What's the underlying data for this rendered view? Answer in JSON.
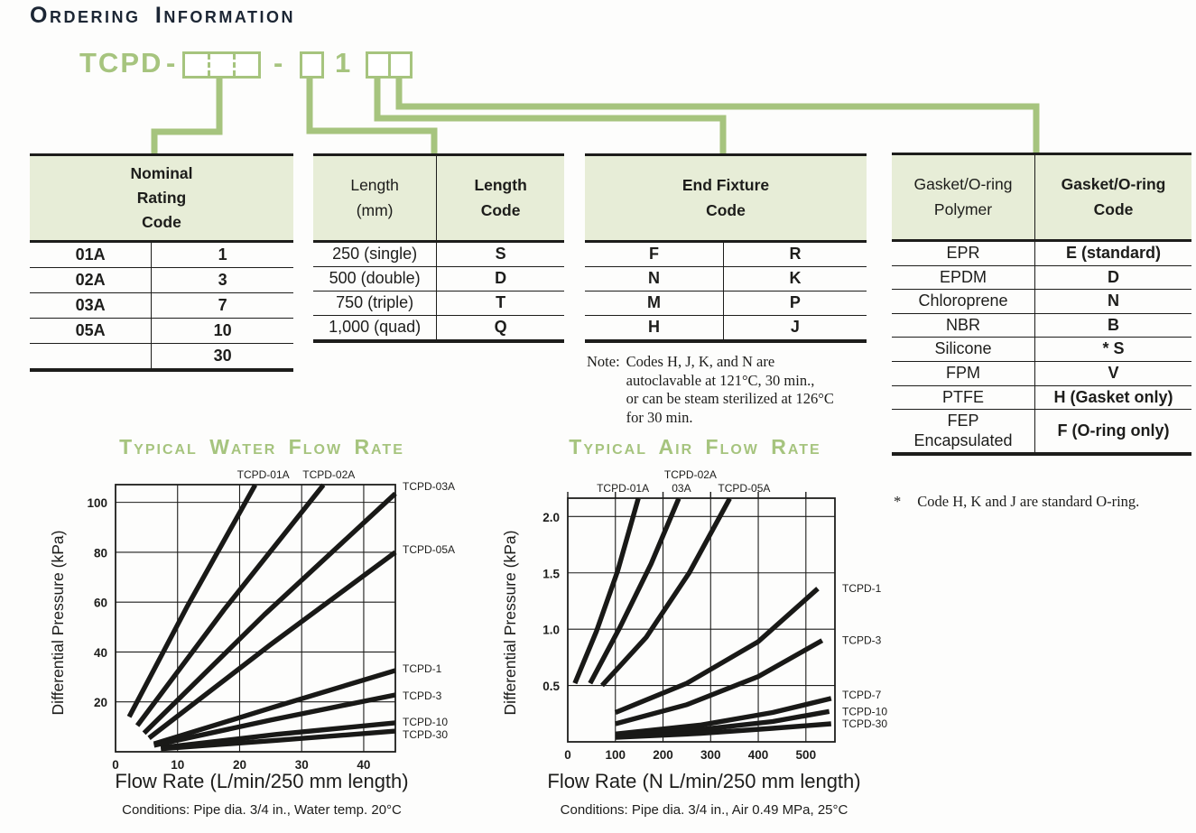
{
  "title": "Ordering Information",
  "colors": {
    "accent_green": "#a6c47e",
    "header_bg": "#e7edd7",
    "title_navy": "#1c2634",
    "ink": "#1d1d1b"
  },
  "part_number": {
    "prefix": "TCPD",
    "dash": "-",
    "digit": "1"
  },
  "tables": {
    "nominal": {
      "header": "Nominal\nRating\nCode",
      "rows": [
        [
          "01A",
          "1"
        ],
        [
          "02A",
          "3"
        ],
        [
          "03A",
          "7"
        ],
        [
          "05A",
          "10"
        ],
        [
          "",
          "30"
        ]
      ]
    },
    "length": {
      "headers": [
        "Length\n(mm)",
        "Length\nCode"
      ],
      "rows": [
        [
          "250 (single)",
          "S"
        ],
        [
          "500 (double)",
          "D"
        ],
        [
          "750 (triple)",
          "T"
        ],
        [
          "1,000 (quad)",
          "Q"
        ]
      ]
    },
    "end_fixture": {
      "header": "End Fixture\nCode",
      "rows": [
        [
          "F",
          "R"
        ],
        [
          "N",
          "K"
        ],
        [
          "M",
          "P"
        ],
        [
          "H",
          "J"
        ]
      ],
      "note_label": "Note:",
      "note_body": "Codes H, J, K, and N are\nautoclavable at 121°C, 30 min.,\nor can be steam sterilized at 126°C\nfor 30 min."
    },
    "gasket": {
      "headers": [
        "Gasket/O-ring\nPolymer",
        "Gasket/O-ring\nCode"
      ],
      "rows": [
        [
          "EPR",
          "E (standard)"
        ],
        [
          "EPDM",
          "D"
        ],
        [
          "Chloroprene",
          "N"
        ],
        [
          "NBR",
          "B"
        ],
        [
          "Silicone",
          "*  S"
        ],
        [
          "FPM",
          "V"
        ],
        [
          "PTFE",
          "H (Gasket only)"
        ],
        [
          "FEP\nEncapsulated",
          "F (O-ring only)"
        ]
      ],
      "footnote_mark": "*",
      "footnote_text": "Code H, K and J are standard O-ring."
    }
  },
  "chart_data": [
    {
      "type": "line",
      "title": "Typical Water Flow Rate",
      "xlabel": "Flow Rate (L/min/250 mm length)",
      "ylabel": "Differential Pressure (kPa)",
      "conditions": "Conditions: Pipe dia. 3/4 in., Water temp. 20°C",
      "xlim": [
        0,
        45.1
      ],
      "ylim": [
        0,
        107.1
      ],
      "grid": true,
      "top_ticks": false,
      "xticks": [
        {
          "v": 0,
          "label": "0"
        },
        {
          "v": 10,
          "label": "10"
        },
        {
          "v": 20,
          "label": "20"
        },
        {
          "v": 30,
          "label": "30"
        },
        {
          "v": 40,
          "label": "40"
        }
      ],
      "yticks": [
        {
          "v": 20,
          "label": "20"
        },
        {
          "v": 40,
          "label": "40"
        },
        {
          "v": 60,
          "label": "60"
        },
        {
          "v": 80,
          "label": "80"
        },
        {
          "v": 100,
          "label": "100"
        }
      ],
      "series": [
        {
          "label": "TCPD-01A",
          "label_pos": "top",
          "label_dx": 9,
          "points": [
            [
              2.2,
              14
            ],
            [
              11.5,
              58
            ],
            [
              22.5,
              107
            ]
          ]
        },
        {
          "label": "TCPD-02A",
          "label_pos": "top",
          "label_dx": 6,
          "points": [
            [
              3.5,
              10.5
            ],
            [
              17.5,
              57
            ],
            [
              33.5,
              107
            ]
          ]
        },
        {
          "label": "TCPD-03A",
          "label_pos": "right",
          "label_dy": -8,
          "points": [
            [
              4.6,
              7.5
            ],
            [
              24,
              55
            ],
            [
              45.1,
              103.5
            ]
          ]
        },
        {
          "label": "TCPD-05A",
          "label_pos": "right",
          "label_dy": -3,
          "points": [
            [
              5.4,
              5.5
            ],
            [
              25,
              43
            ],
            [
              45.1,
              80
            ]
          ]
        },
        {
          "label": "TCPD-1",
          "label_pos": "right",
          "label_dy": -2,
          "points": [
            [
              6.2,
              3.2
            ],
            [
              25,
              17.5
            ],
            [
              45.1,
              32.6
            ]
          ]
        },
        {
          "label": "TCPD-3",
          "label_pos": "right",
          "label_dy": 1,
          "points": [
            [
              6.2,
              2.6
            ],
            [
              25,
              12.7
            ],
            [
              45.1,
              22.8
            ]
          ]
        },
        {
          "label": "TCPD-10",
          "label_pos": "right",
          "label_dy": -1,
          "points": [
            [
              7.3,
              1.6
            ],
            [
              26,
              7
            ],
            [
              45.1,
              11.6
            ]
          ]
        },
        {
          "label": "TCPD-30",
          "label_pos": "right",
          "label_dy": 4,
          "points": [
            [
              7.3,
              1.2
            ],
            [
              26,
              4.6
            ],
            [
              45.1,
              8.3
            ]
          ]
        }
      ]
    },
    {
      "type": "line",
      "title": "Typical Air Flow Rate",
      "xlabel": "Flow Rate (N L/min/250 mm length)",
      "ylabel": "Differential Pressure (kPa)",
      "conditions": "Conditions: Pipe dia. 3/4 in., Air 0.49 MPa, 25°C",
      "xlim": [
        0,
        561
      ],
      "ylim": [
        0,
        2.163
      ],
      "grid": true,
      "top_ticks": true,
      "xticks": [
        {
          "v": 0,
          "label": "0"
        },
        {
          "v": 100,
          "label": "100"
        },
        {
          "v": 200,
          "label": "200"
        },
        {
          "v": 300,
          "label": "300"
        },
        {
          "v": 400,
          "label": "400"
        },
        {
          "v": 500,
          "label": "500"
        }
      ],
      "yticks": [
        {
          "v": 0.5,
          "label": "0.5"
        },
        {
          "v": 1.0,
          "label": "1.0"
        },
        {
          "v": 1.5,
          "label": "1.5"
        },
        {
          "v": 2.0,
          "label": "2.0"
        }
      ],
      "series": [
        {
          "label": "TCPD-01A",
          "label_pos": "top",
          "label_dx": -17,
          "points": [
            [
              15,
              0.52
            ],
            [
              60,
              0.98
            ],
            [
              105,
              1.52
            ],
            [
              148,
              2.16
            ]
          ]
        },
        {
          "label": "TCPD-02A\n03A",
          "label_pos": "top",
          "label_dx": 13,
          "points": [
            [
              47,
              0.52
            ],
            [
              110,
              1.02
            ],
            [
              175,
              1.58
            ],
            [
              233,
              2.16
            ]
          ]
        },
        {
          "label": "TCPD-05A",
          "label_pos": "top",
          "label_dx": 16,
          "points": [
            [
              72,
              0.5
            ],
            [
              165,
              0.93
            ],
            [
              255,
              1.5
            ],
            [
              340,
              2.16
            ]
          ]
        },
        {
          "label": "TCPD-1",
          "label_pos": "right",
          "points": [
            [
              100,
              0.26
            ],
            [
              250,
              0.52
            ],
            [
              400,
              0.89
            ],
            [
              525,
              1.36
            ]
          ]
        },
        {
          "label": "TCPD-3",
          "label_pos": "right",
          "points": [
            [
              100,
              0.16
            ],
            [
              250,
              0.33
            ],
            [
              400,
              0.58
            ],
            [
              534,
              0.9
            ]
          ]
        },
        {
          "label": "TCPD-7",
          "label_pos": "right",
          "label_dy": -4,
          "points": [
            [
              100,
              0.07
            ],
            [
              280,
              0.15
            ],
            [
              430,
              0.26
            ],
            [
              553,
              0.385
            ]
          ]
        },
        {
          "label": "TCPD-10",
          "label_pos": "right",
          "points": [
            [
              100,
              0.055
            ],
            [
              280,
              0.11
            ],
            [
              430,
              0.18
            ],
            [
              549,
              0.27
            ]
          ]
        },
        {
          "label": "TCPD-30",
          "label_pos": "right",
          "points": [
            [
              100,
              0.04
            ],
            [
              280,
              0.075
            ],
            [
              430,
              0.12
            ],
            [
              553,
              0.16
            ]
          ]
        }
      ]
    }
  ]
}
